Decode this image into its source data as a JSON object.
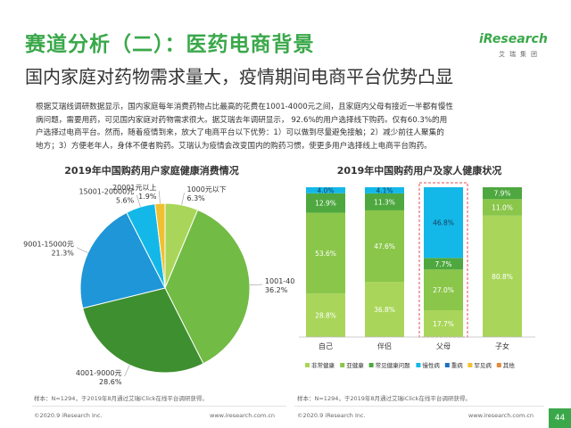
{
  "header": {
    "title": "赛道分析（二）：医药电商背景",
    "subtitle": "国内家庭对药物需求量大，疫情期间电商平台优势凸显",
    "logo_text": "iResearch",
    "logo_cn": "艾瑞集团"
  },
  "paragraph": [
    "根据艾瑞线调研数据显示，国内家庭每年消费药物占比最高的花费在1001-4000元之间，且家庭内父母有接近一半都有慢性",
    "病问题，需要用药，可见国内家庭对药物需求很大。据艾瑞去年调研显示， 92.6%的用户选择线下购药。仅有60.3%的用",
    "户选择过电商平台。然而，随着疫情到来，放大了电商平台以下优势：1）可以做到尽量避免接触；2）减少前往人聚集的",
    "地方；3）方便老年人，身体不便者购药。艾瑞认为疫情会改变国内的购药习惯，使更多用户选择线上电商平台购药。"
  ],
  "colors": {
    "brand_green": "#3aa84a",
    "accent_blue": "#00b0f0",
    "highlight_dashed": "#e05050"
  },
  "chart_data": [
    {
      "type": "pie",
      "title": "2019年中国购药用户家庭健康消费情况",
      "slices": [
        {
          "label": "1000元以下",
          "value": 6.3,
          "value_label": "6.3%",
          "color": "#a9d65a"
        },
        {
          "label": "1001-4000元",
          "value": 36.2,
          "value_label": "36.2%",
          "color": "#72bb45"
        },
        {
          "label": "4001-9000元",
          "value": 28.6,
          "value_label": "28.6%",
          "color": "#3e8f2f"
        },
        {
          "label": "9001-15000元",
          "value": 21.3,
          "value_label": "21.3%",
          "color": "#1e96d7"
        },
        {
          "label": "15001-20000元",
          "value": 5.6,
          "value_label": "5.6%",
          "color": "#13b8e8"
        },
        {
          "label": "20001元以上",
          "value": 1.9,
          "value_label": "1.9%",
          "color": "#f0c030"
        }
      ],
      "note": "样本：N=1294，于2019年8月通过艾瑞iClick在线平台调研获得。"
    },
    {
      "type": "bar",
      "stacked": true,
      "title": "2019年中国购药用户及家人健康状况",
      "categories": [
        "自己",
        "伴侣",
        "父母",
        "子女"
      ],
      "ylim": [
        0,
        100
      ],
      "series": [
        {
          "name": "非常健康",
          "color": "#a9d65a",
          "values": [
            28.8,
            36.8,
            17.7,
            80.8
          ],
          "labels": [
            "28.8%",
            "36.8%",
            "17.7%",
            "80.8%"
          ]
        },
        {
          "name": "亚健康",
          "color": "#8ac64a",
          "values": [
            53.6,
            47.6,
            27.0,
            11.0
          ],
          "labels": [
            "53.6%",
            "47.6%",
            "27.0%",
            "11.0%"
          ]
        },
        {
          "name": "常见健康问题",
          "color": "#4ea83f",
          "values": [
            12.9,
            11.3,
            7.7,
            7.9
          ],
          "labels": [
            "12.9%",
            "11.3%",
            "7.7%",
            "7.9%"
          ]
        },
        {
          "name": "慢性病",
          "color": "#13b8e8",
          "values": [
            4.0,
            4.1,
            46.8,
            0
          ],
          "labels": [
            "4.0%",
            "4.1%",
            "46.8%",
            ""
          ]
        },
        {
          "name": "重病",
          "color": "#1e6fc4",
          "values": [
            0,
            0,
            0,
            0
          ],
          "labels": [
            "",
            "",
            "",
            ""
          ]
        },
        {
          "name": "罕见病",
          "color": "#f0c030",
          "values": [
            0,
            0,
            0,
            0
          ],
          "labels": [
            "",
            "",
            "",
            ""
          ]
        },
        {
          "name": "其他",
          "color": "#e08a3c",
          "values": [
            0,
            0,
            0,
            0
          ],
          "labels": [
            "",
            "",
            "",
            ""
          ]
        }
      ],
      "highlight_category": "父母",
      "legend_position": "bottom",
      "note": "样本：N=1294，于2019年8月通过艾瑞iClick在线平台调研获得。"
    }
  ],
  "footer": {
    "left_copyright": "©2020.9 iResearch Inc.",
    "left_url": "www.iresearch.com.cn",
    "right_copyright": "©2020.9 iResearch Inc.",
    "right_url": "www.iresearch.com.cn",
    "page_number": "44"
  }
}
